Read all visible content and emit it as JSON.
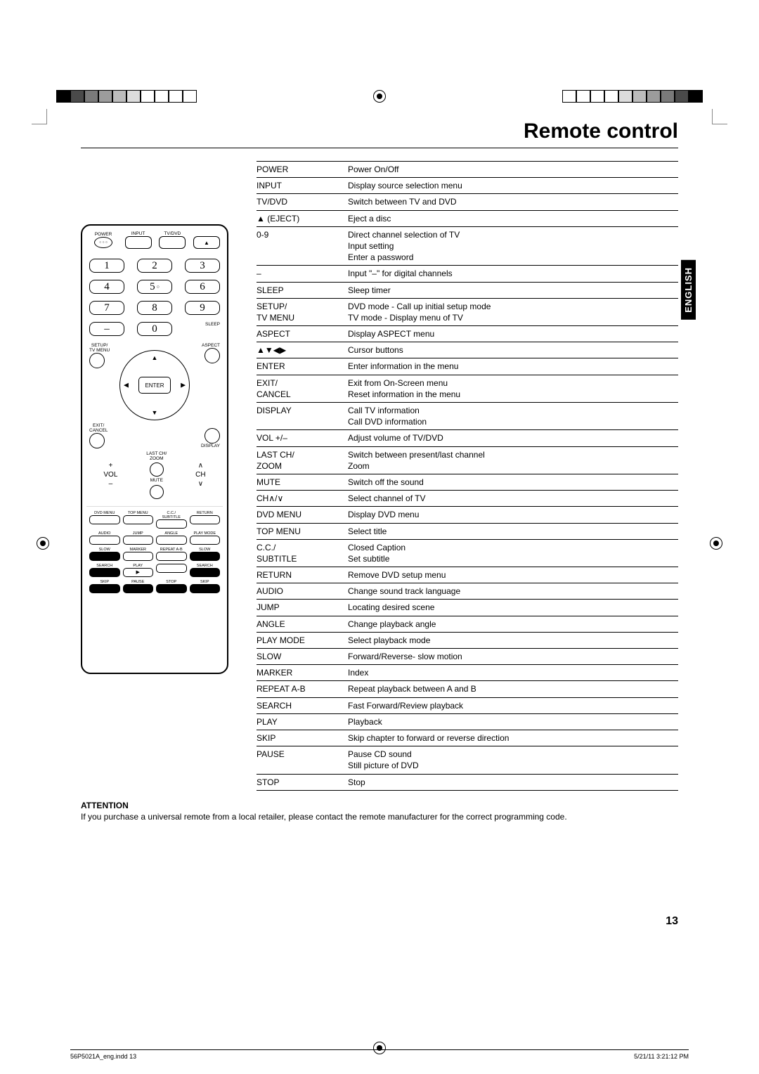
{
  "title": "Remote control",
  "side_tab": "ENGLISH",
  "page_number": "13",
  "footer_left": "56P5021A_eng.indd   13",
  "footer_right": "5/21/11   3:21:12 PM",
  "attention": {
    "heading": "ATTENTION",
    "body": "If you purchase a universal remote from a local retailer, please contact the remote manufacturer for the correct programming code."
  },
  "buttons": {
    "power": "POWER",
    "input": "INPUT",
    "tvdvd": "TV/DVD",
    "nums": [
      "1",
      "2",
      "3",
      "4",
      "5",
      "6",
      "7",
      "8",
      "9",
      "–",
      "0"
    ],
    "sleep": "SLEEP",
    "setup": "SETUP/\nTV MENU",
    "aspect": "ASPECT",
    "enter": "ENTER",
    "exit": "EXIT/\nCANCEL",
    "display": "DISPLAY",
    "lastch": "LAST CH/\nZOOM",
    "vol": "VOL",
    "ch": "CH",
    "mute": "MUTE",
    "row1": [
      "DVD MENU",
      "TOP MENU",
      "C.C./\nSUBTITLE",
      "RETURN"
    ],
    "row2": [
      "AUDIO",
      "JUMP",
      "ANGLE",
      "PLAY MODE"
    ],
    "row3": [
      "SLOW",
      "MARKER",
      "REPEAT A-B",
      "SLOW"
    ],
    "row4": [
      "SEARCH",
      "PLAY",
      "",
      "SEARCH"
    ],
    "row5": [
      "SKIP",
      "PAUSE",
      "STOP",
      "SKIP"
    ]
  },
  "functions": [
    {
      "k": "POWER",
      "v": "Power On/Off"
    },
    {
      "k": "INPUT",
      "v": "Display source selection menu"
    },
    {
      "k": "TV/DVD",
      "v": "Switch between TV and DVD"
    },
    {
      "k": "▲ (EJECT)",
      "v": "Eject a disc"
    },
    {
      "k": "0-9",
      "v": "Direct channel selection of TV\nInput setting\nEnter a password"
    },
    {
      "k": "–",
      "v": "Input \"–\" for digital channels"
    },
    {
      "k": "SLEEP",
      "v": "Sleep timer"
    },
    {
      "k": "SETUP/\nTV MENU",
      "v": "DVD mode - Call up initial setup mode\nTV mode - Display menu of TV"
    },
    {
      "k": "ASPECT",
      "v": "Display ASPECT menu"
    },
    {
      "k": "▲▼◀▶",
      "v": "Cursor buttons"
    },
    {
      "k": "ENTER",
      "v": "Enter information in the menu"
    },
    {
      "k": "EXIT/\nCANCEL",
      "v": "Exit from On-Screen menu\nReset information in the menu"
    },
    {
      "k": "DISPLAY",
      "v": "Call TV information\nCall DVD information"
    },
    {
      "k": "VOL +/–",
      "v": "Adjust volume of TV/DVD"
    },
    {
      "k": "LAST CH/\nZOOM",
      "v": "Switch between present/last channel\nZoom"
    },
    {
      "k": "MUTE",
      "v": "Switch off the sound"
    },
    {
      "k": "CH∧/∨",
      "v": "Select channel of TV"
    },
    {
      "k": "DVD MENU",
      "v": "Display DVD menu"
    },
    {
      "k": "TOP MENU",
      "v": "Select title"
    },
    {
      "k": "C.C./\nSUBTITLE",
      "v": "Closed Caption\nSet subtitle"
    },
    {
      "k": "RETURN",
      "v": "Remove DVD setup menu"
    },
    {
      "k": "AUDIO",
      "v": "Change sound track language"
    },
    {
      "k": "JUMP",
      "v": "Locating desired scene"
    },
    {
      "k": "ANGLE",
      "v": "Change playback angle"
    },
    {
      "k": "PLAY MODE",
      "v": "Select playback mode"
    },
    {
      "k": "SLOW",
      "v": "Forward/Reverse- slow motion"
    },
    {
      "k": "MARKER",
      "v": "Index"
    },
    {
      "k": "REPEAT A-B",
      "v": "Repeat playback between A and B"
    },
    {
      "k": "SEARCH",
      "v": "Fast Forward/Review playback"
    },
    {
      "k": "PLAY",
      "v": "Playback"
    },
    {
      "k": "SKIP",
      "v": "Skip chapter to forward or reverse direction"
    },
    {
      "k": "PAUSE",
      "v": "Pause CD sound\nStill picture of DVD"
    },
    {
      "k": "STOP",
      "v": "Stop"
    }
  ],
  "reg_colors": [
    "#000000",
    "#4a4a4a",
    "#7a7a7a",
    "#9c9c9c",
    "#bcbcbc",
    "#dcdcdc",
    "#ffffff",
    "#ffffff",
    "#ffffff",
    "#ffffff"
  ]
}
